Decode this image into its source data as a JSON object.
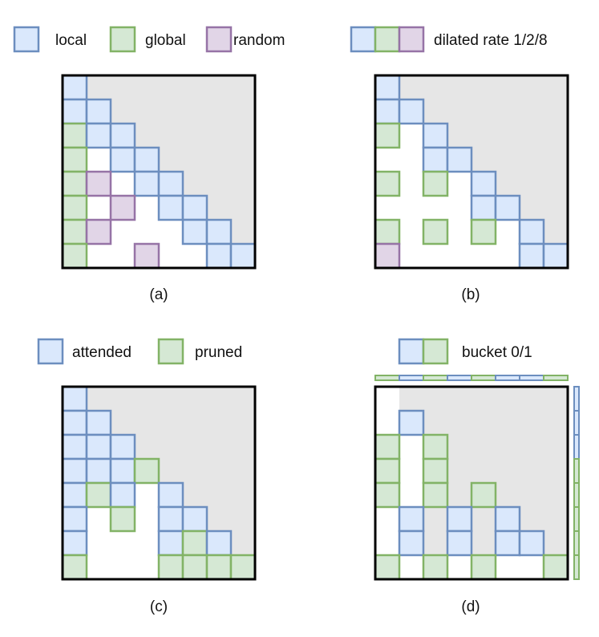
{
  "colors": {
    "local": {
      "fill": "#dae8fc",
      "stroke": "#6c8ebf"
    },
    "global": {
      "fill": "#d5e8d4",
      "stroke": "#82b366"
    },
    "random": {
      "fill": "#e1d5e7",
      "stroke": "#9673a6"
    },
    "masked": "#e6e6e6",
    "frame": "#000000"
  },
  "legend_top_left": [
    {
      "key": "local",
      "label": "local"
    },
    {
      "key": "global",
      "label": "global"
    },
    {
      "key": "random",
      "label": "random"
    }
  ],
  "legend_top_right": {
    "keys": [
      "local",
      "global",
      "random"
    ],
    "label": "dilated rate 1/2/8"
  },
  "legend_bottom_left": [
    {
      "key": "local",
      "label": "attended"
    },
    {
      "key": "global",
      "label": "pruned"
    }
  ],
  "legend_bottom_right": {
    "keys": [
      "local",
      "global"
    ],
    "label": "bucket 0/1"
  },
  "panels": [
    {
      "id": "a",
      "caption": "(a)",
      "size": 8,
      "masked_region": "upper-triangle",
      "cells": [
        {
          "r": 0,
          "c": 0,
          "t": "local"
        },
        {
          "r": 1,
          "c": 0,
          "t": "local"
        },
        {
          "r": 1,
          "c": 1,
          "t": "local"
        },
        {
          "r": 2,
          "c": 0,
          "t": "global"
        },
        {
          "r": 2,
          "c": 1,
          "t": "local"
        },
        {
          "r": 2,
          "c": 2,
          "t": "local"
        },
        {
          "r": 3,
          "c": 0,
          "t": "global"
        },
        {
          "r": 3,
          "c": 2,
          "t": "local"
        },
        {
          "r": 3,
          "c": 3,
          "t": "local"
        },
        {
          "r": 4,
          "c": 0,
          "t": "global"
        },
        {
          "r": 4,
          "c": 1,
          "t": "random"
        },
        {
          "r": 4,
          "c": 3,
          "t": "local"
        },
        {
          "r": 4,
          "c": 4,
          "t": "local"
        },
        {
          "r": 5,
          "c": 0,
          "t": "global"
        },
        {
          "r": 5,
          "c": 2,
          "t": "random"
        },
        {
          "r": 5,
          "c": 4,
          "t": "local"
        },
        {
          "r": 5,
          "c": 5,
          "t": "local"
        },
        {
          "r": 6,
          "c": 0,
          "t": "global"
        },
        {
          "r": 6,
          "c": 1,
          "t": "random"
        },
        {
          "r": 6,
          "c": 5,
          "t": "local"
        },
        {
          "r": 6,
          "c": 6,
          "t": "local"
        },
        {
          "r": 7,
          "c": 0,
          "t": "global"
        },
        {
          "r": 7,
          "c": 3,
          "t": "random"
        },
        {
          "r": 7,
          "c": 6,
          "t": "local"
        },
        {
          "r": 7,
          "c": 7,
          "t": "local"
        }
      ]
    },
    {
      "id": "b",
      "caption": "(b)",
      "size": 8,
      "masked_region": "upper-triangle",
      "cells": [
        {
          "r": 0,
          "c": 0,
          "t": "local"
        },
        {
          "r": 1,
          "c": 0,
          "t": "local"
        },
        {
          "r": 1,
          "c": 1,
          "t": "local"
        },
        {
          "r": 2,
          "c": 0,
          "t": "global"
        },
        {
          "r": 2,
          "c": 2,
          "t": "local"
        },
        {
          "r": 3,
          "c": 2,
          "t": "local"
        },
        {
          "r": 3,
          "c": 3,
          "t": "local"
        },
        {
          "r": 4,
          "c": 0,
          "t": "global"
        },
        {
          "r": 4,
          "c": 2,
          "t": "global"
        },
        {
          "r": 4,
          "c": 4,
          "t": "local"
        },
        {
          "r": 5,
          "c": 4,
          "t": "local"
        },
        {
          "r": 5,
          "c": 5,
          "t": "local"
        },
        {
          "r": 6,
          "c": 0,
          "t": "global"
        },
        {
          "r": 6,
          "c": 2,
          "t": "global"
        },
        {
          "r": 6,
          "c": 4,
          "t": "global"
        },
        {
          "r": 6,
          "c": 6,
          "t": "local"
        },
        {
          "r": 7,
          "c": 0,
          "t": "random"
        },
        {
          "r": 7,
          "c": 6,
          "t": "local"
        },
        {
          "r": 7,
          "c": 7,
          "t": "local"
        }
      ]
    },
    {
      "id": "c",
      "caption": "(c)",
      "size": 8,
      "masked_region": "upper-triangle",
      "cells": [
        {
          "r": 0,
          "c": 0,
          "t": "local"
        },
        {
          "r": 1,
          "c": 0,
          "t": "local"
        },
        {
          "r": 1,
          "c": 1,
          "t": "local"
        },
        {
          "r": 2,
          "c": 0,
          "t": "local"
        },
        {
          "r": 2,
          "c": 1,
          "t": "local"
        },
        {
          "r": 2,
          "c": 2,
          "t": "local"
        },
        {
          "r": 3,
          "c": 0,
          "t": "local"
        },
        {
          "r": 3,
          "c": 1,
          "t": "local"
        },
        {
          "r": 3,
          "c": 2,
          "t": "local"
        },
        {
          "r": 3,
          "c": 3,
          "t": "global"
        },
        {
          "r": 4,
          "c": 0,
          "t": "local"
        },
        {
          "r": 4,
          "c": 1,
          "t": "global"
        },
        {
          "r": 4,
          "c": 2,
          "t": "local"
        },
        {
          "r": 4,
          "c": 4,
          "t": "local"
        },
        {
          "r": 5,
          "c": 0,
          "t": "local"
        },
        {
          "r": 5,
          "c": 2,
          "t": "global"
        },
        {
          "r": 5,
          "c": 4,
          "t": "local"
        },
        {
          "r": 5,
          "c": 5,
          "t": "local"
        },
        {
          "r": 6,
          "c": 0,
          "t": "local"
        },
        {
          "r": 6,
          "c": 4,
          "t": "local"
        },
        {
          "r": 6,
          "c": 5,
          "t": "global"
        },
        {
          "r": 6,
          "c": 6,
          "t": "local"
        },
        {
          "r": 7,
          "c": 0,
          "t": "global"
        },
        {
          "r": 7,
          "c": 4,
          "t": "global"
        },
        {
          "r": 7,
          "c": 5,
          "t": "global"
        },
        {
          "r": 7,
          "c": 6,
          "t": "global"
        },
        {
          "r": 7,
          "c": 7,
          "t": "global"
        }
      ]
    },
    {
      "id": "d",
      "caption": "(d)",
      "size": 8,
      "masked_region": "staircase",
      "mask_starts": [
        1,
        1,
        2,
        3,
        2,
        2,
        2,
        8
      ],
      "cells": [
        {
          "r": 1,
          "c": 1,
          "t": "local"
        },
        {
          "r": 2,
          "c": 0,
          "t": "global"
        },
        {
          "r": 2,
          "c": 2,
          "t": "global"
        },
        {
          "r": 3,
          "c": 0,
          "t": "global"
        },
        {
          "r": 3,
          "c": 2,
          "t": "global"
        },
        {
          "r": 4,
          "c": 0,
          "t": "global"
        },
        {
          "r": 4,
          "c": 2,
          "t": "global"
        },
        {
          "r": 4,
          "c": 4,
          "t": "global"
        },
        {
          "r": 5,
          "c": 1,
          "t": "local"
        },
        {
          "r": 5,
          "c": 3,
          "t": "local"
        },
        {
          "r": 5,
          "c": 5,
          "t": "local"
        },
        {
          "r": 6,
          "c": 1,
          "t": "local"
        },
        {
          "r": 6,
          "c": 3,
          "t": "local"
        },
        {
          "r": 6,
          "c": 5,
          "t": "local"
        },
        {
          "r": 6,
          "c": 6,
          "t": "local"
        },
        {
          "r": 7,
          "c": 0,
          "t": "global"
        },
        {
          "r": 7,
          "c": 2,
          "t": "global"
        },
        {
          "r": 7,
          "c": 4,
          "t": "global"
        },
        {
          "r": 7,
          "c": 7,
          "t": "global"
        }
      ],
      "top_strip": [
        "global",
        "local",
        "global",
        "local",
        "global",
        "local",
        "local",
        "global"
      ],
      "side_strip": [
        "local",
        "local",
        "local",
        "global",
        "global",
        "global",
        "global",
        "global"
      ]
    }
  ]
}
